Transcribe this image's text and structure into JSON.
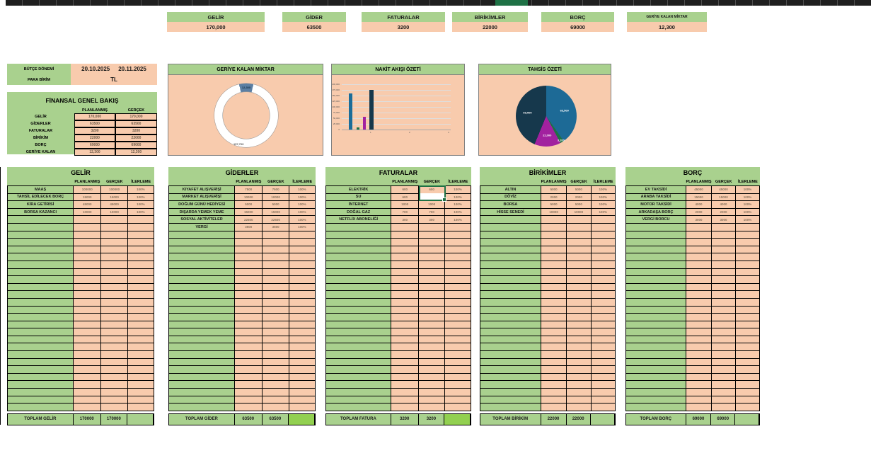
{
  "colors": {
    "cell_green": "#a9d18e",
    "cell_salmon": "#f8cbad",
    "accent_green": "#92d050",
    "selection_green": "#1e7145",
    "topbar": "#1f1f1f"
  },
  "summary_cards": [
    {
      "id": "gelir",
      "label": "GELİR",
      "value": "170,000"
    },
    {
      "id": "gider",
      "label": "GİDER",
      "value": "63500"
    },
    {
      "id": "faturalar",
      "label": "FATURALAR",
      "value": "3200"
    },
    {
      "id": "birikimler",
      "label": "BİRİKİMLER",
      "value": "22000"
    },
    {
      "id": "borc",
      "label": "BORÇ",
      "value": "69000"
    },
    {
      "id": "geriye-kalan",
      "label": "GERİYE KALAN MİKTAR",
      "value": "12,300",
      "small": true
    }
  ],
  "info": {
    "period_label": "BÜTÇE DÖNEMİ",
    "period_start": "20.10.2025",
    "period_end": "20.11.2025",
    "currency_label": "PARA BİRİM",
    "currency_value": "TL"
  },
  "overview": {
    "title": "FİNANSAL GENEL BAKIŞ",
    "columns": [
      "PLANLANMIŞ",
      "GERÇEK"
    ],
    "rows": [
      {
        "label": "GELİR",
        "planned": "170,000",
        "actual": "170,000"
      },
      {
        "label": "GİDERLER",
        "planned": "63500",
        "actual": "63500"
      },
      {
        "label": "FATURALAR",
        "planned": "3200",
        "actual": "3200"
      },
      {
        "label": "BİRİKİM",
        "planned": "22000",
        "actual": "22000"
      },
      {
        "label": "BORÇ",
        "planned": "69000",
        "actual": "69000"
      },
      {
        "label": "GERİYE KALAN",
        "planned": "12,300",
        "actual": "12,300"
      }
    ]
  },
  "chart_data": [
    {
      "type": "donut",
      "title": "GERİYE KALAN MİKTAR",
      "total": 170000,
      "slices": [
        {
          "label": "GERİYE KALAN",
          "value": 12300,
          "display": "12,300",
          "color": "#5c7fa3"
        },
        {
          "label": "KULLANILAN",
          "value": 157700,
          "display": "157,700",
          "color": "#ffffff"
        }
      ]
    },
    {
      "type": "bar",
      "title": "NAKİT AKIŞI ÖZETİ",
      "estimated": true,
      "grid": true,
      "bars": [
        {
          "value": 160000,
          "color": "#1b6d99"
        },
        {
          "value": 8000,
          "color": "#1e7145"
        },
        {
          "value": 57500,
          "color": "#a2219f"
        },
        {
          "value": 175000,
          "color": "#16384c"
        }
      ],
      "ylim": [
        0,
        200000
      ],
      "yticks": [
        "0",
        "25,000",
        "50,000",
        "75,000",
        "100,000",
        "125,000",
        "150,000",
        "175,000",
        "200,000"
      ],
      "xticks": [
        "1",
        "2",
        "3"
      ]
    },
    {
      "type": "pie",
      "title": "TAHSİS ÖZETİ",
      "slices": [
        {
          "label": "GİDERLER",
          "value": 63500,
          "display": "63,500",
          "color": "#1d6a96"
        },
        {
          "label": "FATURALAR",
          "value": 3200,
          "display": "3,200",
          "color": "#1e7145"
        },
        {
          "label": "BİRİKİMLER",
          "value": 22000,
          "display": "22,000",
          "color": "#a2219f"
        },
        {
          "label": "BORÇ",
          "value": 69000,
          "display": "69,000",
          "color": "#16384c"
        }
      ]
    }
  ],
  "tables": [
    {
      "id": "gelir",
      "title": "GELİR",
      "columns": [
        "PLANLANMIŞ",
        "GERÇEK",
        "İLERLEME"
      ],
      "rows": [
        {
          "name": "MAAŞ",
          "planned": "100000",
          "actual": "100000",
          "progress": "100%"
        },
        {
          "name": "TAHSİL EDİLECEK BORÇ",
          "planned": "15000",
          "actual": "15000",
          "progress": "100%"
        },
        {
          "name": "KİRA GETİRİSİ",
          "planned": "45000",
          "actual": "45000",
          "progress": "100%"
        },
        {
          "name": "BORSA KAZANCI",
          "planned": "10000",
          "actual": "10000",
          "progress": "100%"
        }
      ],
      "total": {
        "label": "TOPLAM GELİR",
        "planned": "170000",
        "actual": "170000"
      }
    },
    {
      "id": "giderler",
      "title": "GİDERLER",
      "columns": [
        "PLANLANMIŞ",
        "GERÇEK",
        "İLERLEME"
      ],
      "total_accent": true,
      "rows": [
        {
          "name": "KIYAFET ALIŞVERİŞİ",
          "planned": "7500",
          "actual": "7500",
          "progress": "100%"
        },
        {
          "name": "MARKET ALIŞVERİŞİ",
          "planned": "10000",
          "actual": "10000",
          "progress": "100%"
        },
        {
          "name": "DOĞUM GÜNÜ HEDİYESİ",
          "planned": "5000",
          "actual": "5000",
          "progress": "100%"
        },
        {
          "name": "DIŞARDA YEMEK YEME",
          "planned": "15000",
          "actual": "15000",
          "progress": "100%"
        },
        {
          "name": "SOSYAL AKTİVİTELER",
          "planned": "22500",
          "actual": "22500",
          "progress": "100%"
        },
        {
          "name": "VERGİ",
          "planned": "3500",
          "actual": "3500",
          "progress": "100%"
        }
      ],
      "total": {
        "label": "TOPLAM GİDER",
        "planned": "63500",
        "actual": "63500"
      }
    },
    {
      "id": "faturalar",
      "title": "FATURALAR",
      "columns": [
        "PLANLANMIŞ",
        "GERÇEK",
        "İLERLEME"
      ],
      "total_accent": true,
      "rows": [
        {
          "name": "ELEKTRİK",
          "planned": "600",
          "actual": "600",
          "progress": "100%"
        },
        {
          "name": "SU",
          "planned": "600",
          "actual": "",
          "progress": "100%"
        },
        {
          "name": "İNTERNET",
          "planned": "1000",
          "actual": "1000",
          "progress": "100%"
        },
        {
          "name": "DOĞAL GAZ",
          "planned": "700",
          "actual": "700",
          "progress": "100%"
        },
        {
          "name": "NETFLİX ABONELİĞİ",
          "planned": "300",
          "actual": "300",
          "progress": "100%"
        }
      ],
      "total": {
        "label": "TOPLAM FATURA",
        "planned": "3200",
        "actual": "3200"
      }
    },
    {
      "id": "birikimler",
      "title": "BİRİKİMLER",
      "columns": [
        "PLANLANMIŞ",
        "GERÇEK",
        "İLERLEME"
      ],
      "rows": [
        {
          "name": "ALTIN",
          "planned": "5000",
          "actual": "5000",
          "progress": "100%"
        },
        {
          "name": "DÖVİZ",
          "planned": "2000",
          "actual": "2000",
          "progress": "100%"
        },
        {
          "name": "BORSA",
          "planned": "5000",
          "actual": "5000",
          "progress": "100%"
        },
        {
          "name": "HİSSE SENEDİ",
          "planned": "10000",
          "actual": "10000",
          "progress": "100%"
        }
      ],
      "total": {
        "label": "TOPLAM BİRİKİM",
        "planned": "22000",
        "actual": "22000"
      }
    },
    {
      "id": "borc",
      "title": "BORÇ",
      "columns": [
        "PLANLANMIŞ",
        "GERÇEK",
        "İLERLEME"
      ],
      "rows": [
        {
          "name": "EV TAKSİDİ",
          "planned": "45000",
          "actual": "45000",
          "progress": "100%"
        },
        {
          "name": "ARABA TAKSİDİ",
          "planned": "15000",
          "actual": "15000",
          "progress": "100%"
        },
        {
          "name": "MOTOR TAKSİDİ",
          "planned": "4000",
          "actual": "4000",
          "progress": "100%"
        },
        {
          "name": "ARKADAŞA BORÇ",
          "planned": "2000",
          "actual": "2000",
          "progress": "100%"
        },
        {
          "name": "VERGİ BORCU",
          "planned": "3000",
          "actual": "3000",
          "progress": "100%"
        }
      ],
      "total": {
        "label": "TOPLAM BORÇ",
        "planned": "69000",
        "actual": "69000"
      }
    }
  ],
  "selection": {
    "table": "FATURALAR",
    "column": "GERÇEK",
    "rows": [
      "ELEKTRİK",
      "SU"
    ]
  }
}
